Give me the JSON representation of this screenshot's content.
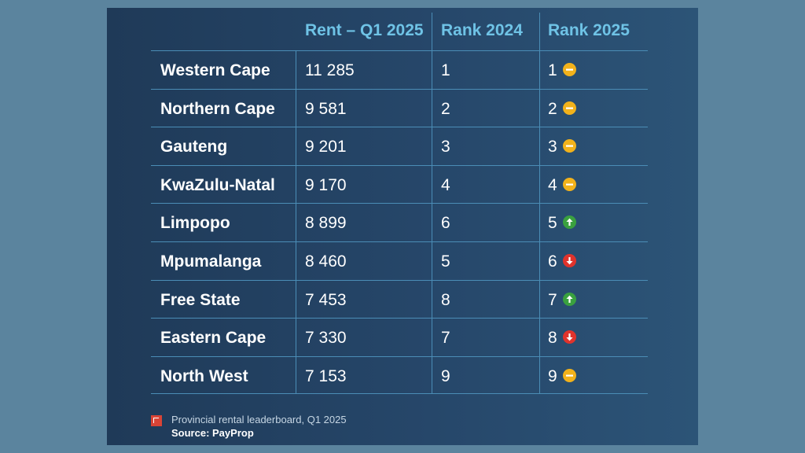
{
  "chart_data": {
    "type": "table",
    "columns": [
      "",
      "Rent – Q1 2025",
      "Rank 2024",
      "Rank 2025"
    ],
    "rows": [
      {
        "province": "Western Cape",
        "rent": "11 285",
        "rank_2024": "1",
        "rank_2025": "1",
        "trend": "same"
      },
      {
        "province": "Northern Cape",
        "rent": "9 581",
        "rank_2024": "2",
        "rank_2025": "2",
        "trend": "same"
      },
      {
        "province": "Gauteng",
        "rent": "9 201",
        "rank_2024": "3",
        "rank_2025": "3",
        "trend": "same"
      },
      {
        "province": "KwaZulu-Natal",
        "rent": "9 170",
        "rank_2024": "4",
        "rank_2025": "4",
        "trend": "same"
      },
      {
        "province": "Limpopo",
        "rent": "8 899",
        "rank_2024": "6",
        "rank_2025": "5",
        "trend": "up"
      },
      {
        "province": "Mpumalanga",
        "rent": "8 460",
        "rank_2024": "5",
        "rank_2025": "6",
        "trend": "down"
      },
      {
        "province": "Free State",
        "rent": "7 453",
        "rank_2024": "8",
        "rank_2025": "7",
        "trend": "up"
      },
      {
        "province": "Eastern Cape",
        "rent": "7 330",
        "rank_2024": "7",
        "rank_2025": "8",
        "trend": "down"
      },
      {
        "province": "North West",
        "rent": "7 153",
        "rank_2024": "9",
        "rank_2025": "9",
        "trend": "same"
      }
    ],
    "caption": "Provincial rental leaderboard, Q1 2025",
    "source": "Source: PayProp"
  },
  "colors": {
    "background": "#5b849e",
    "panel": "#26476a",
    "header_text": "#6fc3e6",
    "grid_lines": "#4b8db6",
    "same": "#f2b21b",
    "up": "#3aa13f",
    "down": "#e0332c",
    "logo": "#d94436"
  },
  "icons": {
    "same": "minus-circle-icon",
    "up": "arrow-up-circle-icon",
    "down": "arrow-down-circle-icon",
    "logo": "payprop-logo-icon"
  }
}
